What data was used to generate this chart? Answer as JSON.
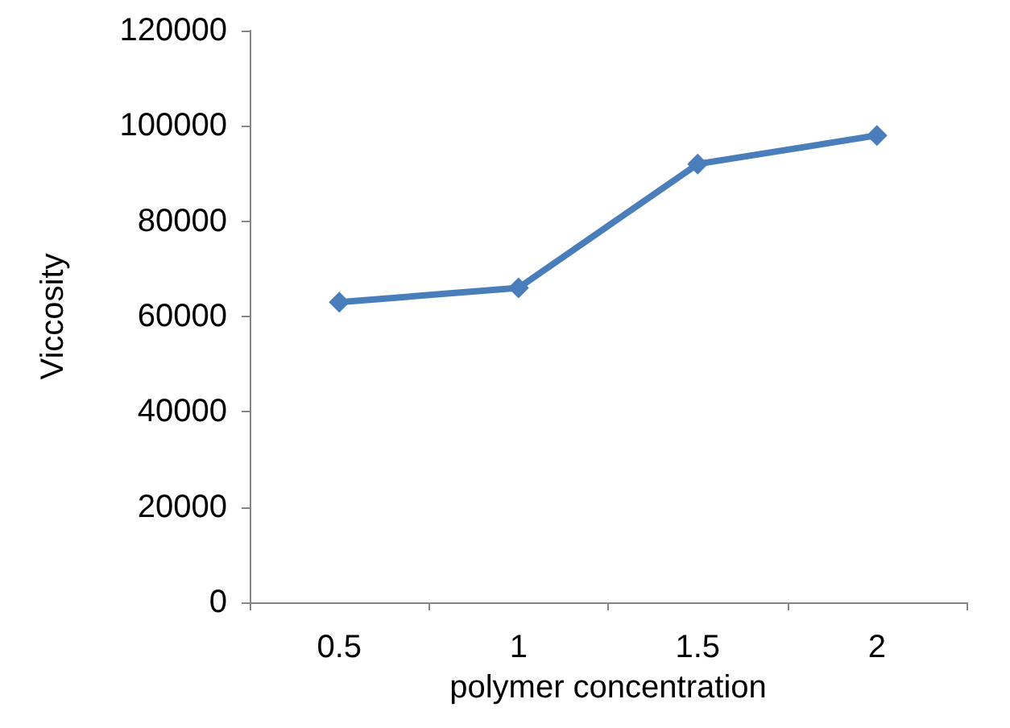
{
  "chart_data": {
    "type": "line",
    "xlabel": "polymer concentration",
    "ylabel": "Viccosity",
    "categories": [
      "0.5",
      "1",
      "1.5",
      "2"
    ],
    "series": [
      {
        "color": "#4a7ebb",
        "values": [
          63000,
          66000,
          92000,
          98000
        ]
      }
    ],
    "ylim": [
      0,
      120000
    ],
    "yticks": [
      0,
      20000,
      40000,
      60000,
      80000,
      100000,
      120000
    ],
    "grid": false,
    "marker": "diamond",
    "line_style": "solid"
  }
}
